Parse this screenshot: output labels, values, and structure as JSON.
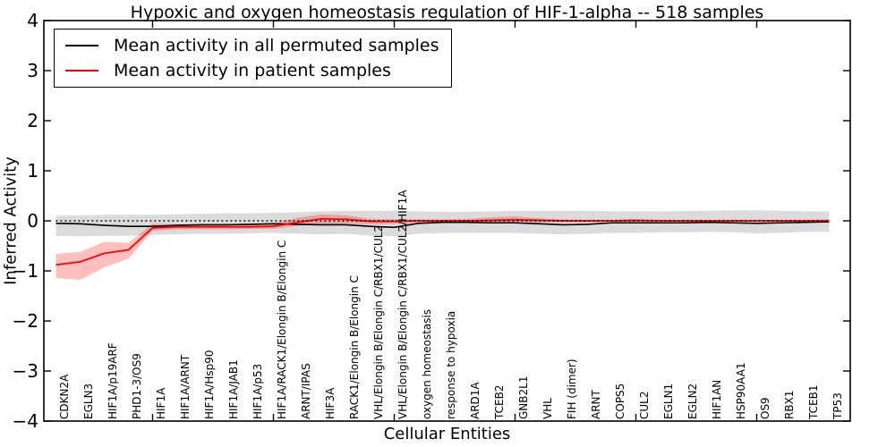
{
  "chart_data": {
    "type": "line",
    "title": "Hypoxic and oxygen homeostasis regulation of HIF-1-alpha -- 518 samples",
    "xlabel": "Cellular Entities",
    "ylabel": "Inferred Activity",
    "ylim": [
      -4,
      4
    ],
    "grid": false,
    "legend_position": "upper left",
    "axis_color": "#000000",
    "yticks": [
      {
        "value": 4,
        "label": "4"
      },
      {
        "value": 3,
        "label": "3"
      },
      {
        "value": 2,
        "label": "2"
      },
      {
        "value": 1,
        "label": "1"
      },
      {
        "value": 0,
        "label": "0"
      },
      {
        "value": -1,
        "label": "−1"
      },
      {
        "value": -2,
        "label": "−2"
      },
      {
        "value": -3,
        "label": "−3"
      },
      {
        "value": -4,
        "label": "−4"
      }
    ],
    "major_x_tick_indices": [
      4,
      9,
      14,
      19,
      24,
      29
    ],
    "categories": [
      "CDKN2A",
      "EGLN3",
      "HIF1A/p19ARF",
      "PHD1-3/OS9",
      "HIF1A",
      "HIF1A/ARNT",
      "HIF1A/Hsp90",
      "HIF1A/JAB1",
      "HIF1A/p53",
      "HIF1A/RACK1/Elongin B/Elongin C",
      "ARNT/IPAS",
      "HIF3A",
      "RACK1/Elongin B/Elongin C",
      "VHL/Elongin B/Elongin C/RBX1/CUL2",
      "VHL/Elongin B/Elongin C/RBX1/CUL2/HIF1A",
      "oxygen homeostasis",
      "response to hypoxia",
      "ARD1A",
      "TCEB2",
      "GNB2L1",
      "VHL",
      "FIH (dimer)",
      "ARNT",
      "COPS5",
      "CUL2",
      "EGLN1",
      "EGLN2",
      "HIF1AN",
      "HSP90AA1",
      "OS9",
      "RBX1",
      "TCEB1",
      "TP53"
    ],
    "zero_line": {
      "value": 0,
      "style": "dotted",
      "color": "#000000"
    },
    "series": [
      {
        "key": "permuted",
        "name": "Mean activity in all permuted samples",
        "color": "#000000",
        "band_color": "rgba(0,0,0,0.14)",
        "values": [
          -0.05,
          -0.06,
          -0.09,
          -0.11,
          -0.11,
          -0.09,
          -0.08,
          -0.08,
          -0.07,
          -0.06,
          -0.07,
          -0.08,
          -0.08,
          -0.11,
          -0.13,
          -0.05,
          -0.03,
          -0.03,
          -0.04,
          -0.04,
          -0.06,
          -0.08,
          -0.07,
          -0.04,
          -0.04,
          -0.04,
          -0.04,
          -0.03,
          -0.04,
          -0.05,
          -0.04,
          -0.03,
          -0.02
        ],
        "band_upper": [
          0.1,
          0.11,
          0.12,
          0.12,
          0.12,
          0.13,
          0.14,
          0.15,
          0.15,
          0.16,
          0.17,
          0.19,
          0.2,
          0.2,
          0.2,
          0.19,
          0.18,
          0.18,
          0.19,
          0.2,
          0.2,
          0.2,
          0.2,
          0.19,
          0.19,
          0.19,
          0.2,
          0.2,
          0.21,
          0.21,
          0.2,
          0.19,
          0.19
        ],
        "band_lower": [
          -0.3,
          -0.31,
          -0.3,
          -0.3,
          -0.28,
          -0.27,
          -0.26,
          -0.26,
          -0.25,
          -0.24,
          -0.26,
          -0.27,
          -0.26,
          -0.3,
          -0.31,
          -0.26,
          -0.24,
          -0.24,
          -0.24,
          -0.24,
          -0.26,
          -0.27,
          -0.26,
          -0.24,
          -0.24,
          -0.23,
          -0.23,
          -0.22,
          -0.23,
          -0.25,
          -0.24,
          -0.22,
          -0.22
        ]
      },
      {
        "key": "patient",
        "name": "Mean activity in patient samples",
        "color": "#ff0000",
        "band_color": "rgba(255,0,0,0.25)",
        "values": [
          -0.88,
          -0.82,
          -0.65,
          -0.58,
          -0.14,
          -0.12,
          -0.12,
          -0.12,
          -0.12,
          -0.11,
          -0.03,
          0.04,
          0.03,
          -0.01,
          -0.01,
          0.0,
          0.0,
          0.0,
          0.01,
          0.02,
          0.01,
          0.0,
          0.0,
          0.0,
          0.01,
          0.0,
          0.0,
          0.0,
          0.0,
          0.0,
          0.0,
          0.0,
          0.0
        ],
        "band_upper": [
          -0.66,
          -0.62,
          -0.42,
          -0.44,
          -0.06,
          -0.07,
          -0.07,
          -0.07,
          -0.07,
          -0.05,
          0.06,
          0.13,
          0.11,
          0.04,
          0.03,
          0.03,
          0.03,
          0.04,
          0.07,
          0.09,
          0.05,
          0.03,
          0.02,
          0.02,
          0.03,
          0.02,
          0.02,
          0.02,
          0.02,
          0.02,
          0.02,
          0.02,
          0.03
        ],
        "band_lower": [
          -1.14,
          -1.18,
          -0.93,
          -0.76,
          -0.2,
          -0.17,
          -0.17,
          -0.17,
          -0.16,
          -0.16,
          -0.1,
          -0.06,
          -0.06,
          -0.07,
          -0.06,
          -0.04,
          -0.04,
          -0.04,
          -0.03,
          -0.03,
          -0.03,
          -0.03,
          -0.03,
          -0.02,
          -0.02,
          -0.02,
          -0.02,
          -0.02,
          -0.02,
          -0.02,
          -0.02,
          -0.02,
          -0.03
        ]
      }
    ]
  }
}
